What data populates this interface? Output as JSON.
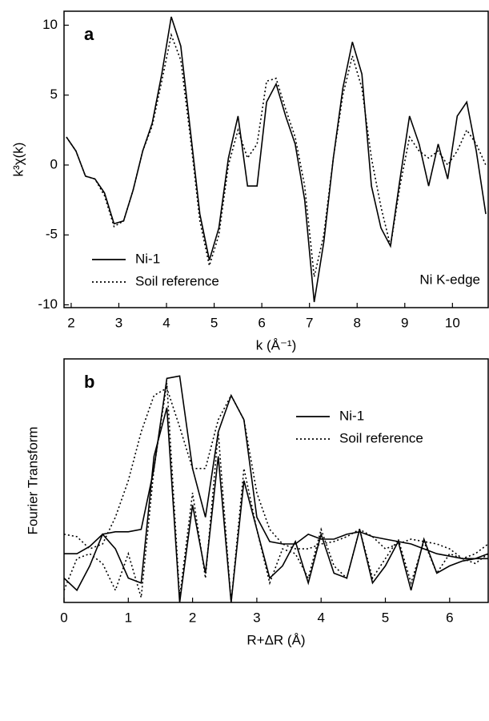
{
  "chart_data": [
    {
      "type": "line",
      "panel_label": "a",
      "xlabel": "k (Å⁻¹)",
      "ylabel": "k³χ(k)",
      "annotation": "Ni K-edge",
      "legend": "lower left",
      "x": [
        1.9,
        2.1,
        2.3,
        2.5,
        2.7,
        2.9,
        3.1,
        3.3,
        3.5,
        3.7,
        3.9,
        4.1,
        4.3,
        4.5,
        4.7,
        4.9,
        5.1,
        5.3,
        5.5,
        5.7,
        5.9,
        6.1,
        6.3,
        6.5,
        6.7,
        6.9,
        7.1,
        7.3,
        7.5,
        7.7,
        7.9,
        8.1,
        8.3,
        8.5,
        8.7,
        8.9,
        9.1,
        9.3,
        9.5,
        9.7,
        9.9,
        10.1,
        10.3,
        10.5,
        10.7
      ],
      "series": [
        {
          "name": "Ni-1",
          "color": "#000000",
          "style": "solid",
          "values": [
            2.0,
            1.0,
            -0.8,
            -1.0,
            -2.0,
            -4.2,
            -4.0,
            -1.8,
            1.0,
            3.0,
            6.5,
            10.6,
            8.5,
            2.5,
            -3.5,
            -6.8,
            -4.5,
            0.5,
            3.5,
            -1.5,
            -1.5,
            4.5,
            5.8,
            3.5,
            1.5,
            -2.5,
            -9.8,
            -5.5,
            0.5,
            5.5,
            8.8,
            6.5,
            -1.5,
            -4.5,
            -5.8,
            -1.0,
            3.5,
            1.5,
            -1.5,
            1.5,
            -1.0,
            3.5,
            4.5,
            1.0,
            -3.5
          ]
        },
        {
          "name": "Soil reference",
          "color": "#000000",
          "style": "dotted",
          "values": [
            2.0,
            1.0,
            -0.8,
            -1.0,
            -2.2,
            -4.4,
            -4.0,
            -1.8,
            1.0,
            2.8,
            6.0,
            9.3,
            7.5,
            2.0,
            -4.0,
            -7.2,
            -5.0,
            0.0,
            2.5,
            0.5,
            1.5,
            6.0,
            6.2,
            4.0,
            2.0,
            -1.5,
            -8.0,
            -5.0,
            0.5,
            5.0,
            7.8,
            5.5,
            0.5,
            -3.0,
            -5.8,
            -1.5,
            2.0,
            1.0,
            0.5,
            1.0,
            0.0,
            1.0,
            2.5,
            1.5,
            0.0
          ]
        }
      ],
      "xlim": [
        1.85,
        10.75
      ],
      "xticks": [
        2,
        3,
        4,
        5,
        6,
        7,
        8,
        9,
        10
      ],
      "ylim": [
        -10.2,
        11.0
      ],
      "yticks": [
        -10,
        -5,
        0,
        5,
        10
      ]
    },
    {
      "type": "line",
      "panel_label": "b",
      "xlabel": "R+ΔR (Å)",
      "ylabel": "Fourier Transform",
      "legend": "upper right",
      "x": [
        0,
        0.2,
        0.4,
        0.6,
        0.8,
        1.0,
        1.2,
        1.4,
        1.6,
        1.8,
        2.0,
        2.2,
        2.4,
        2.6,
        2.8,
        3.0,
        3.2,
        3.4,
        3.6,
        3.8,
        4.0,
        4.2,
        4.4,
        4.6,
        4.8,
        5.0,
        5.2,
        5.4,
        5.6,
        5.8,
        6.0,
        6.2,
        6.4,
        6.6
      ],
      "series": [
        {
          "name": "Ni-1",
          "color": "#000000",
          "style": "solid",
          "values": [
            20,
            20,
            23,
            28,
            29,
            29,
            30,
            55,
            92,
            93,
            55,
            35,
            70,
            85,
            75,
            35,
            25,
            24,
            24,
            28,
            26,
            26,
            28,
            29,
            27,
            26,
            25,
            24,
            22,
            20,
            19,
            18,
            18,
            18
          ]
        },
        {
          "name": "Soil reference",
          "color": "#000000",
          "style": "dotted",
          "values": [
            28,
            27,
            22,
            24,
            35,
            50,
            70,
            85,
            88,
            72,
            55,
            55,
            75,
            85,
            75,
            45,
            30,
            24,
            22,
            22,
            24,
            25,
            27,
            30,
            27,
            22,
            24,
            26,
            25,
            24,
            22,
            18,
            20,
            24
          ]
        },
        {
          "color": "#000000",
          "style": "solid",
          "values": [
            10,
            5,
            15,
            28,
            22,
            10,
            8,
            60,
            80,
            0,
            40,
            12,
            60,
            0,
            50,
            30,
            10,
            15,
            25,
            8,
            28,
            12,
            10,
            30,
            8,
            15,
            25,
            5,
            26,
            12,
            15,
            17,
            18,
            20
          ]
        },
        {
          "color": "#000000",
          "style": "dotted",
          "values": [
            5,
            18,
            20,
            16,
            5,
            20,
            2,
            55,
            90,
            2,
            45,
            10,
            70,
            0,
            55,
            30,
            8,
            22,
            20,
            10,
            30,
            15,
            10,
            30,
            10,
            18,
            26,
            8,
            25,
            12,
            20,
            18,
            16,
            20
          ]
        }
      ],
      "xlim": [
        0,
        6.6
      ],
      "xticks": [
        0,
        1,
        2,
        3,
        4,
        5,
        6
      ],
      "ylim": [
        0,
        100
      ]
    }
  ]
}
